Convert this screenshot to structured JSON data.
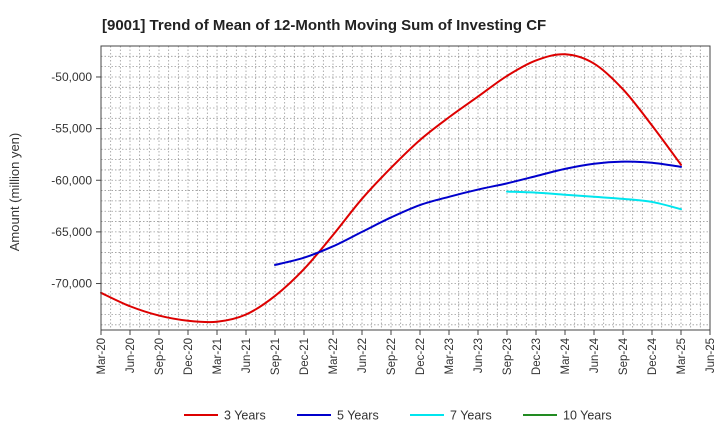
{
  "chart_data": {
    "type": "line",
    "title": "[9001]  Trend of Mean of 12-Month Moving Sum of Investing CF",
    "xlabel": "",
    "ylabel": "Amount (million yen)",
    "ylim": [
      -74500,
      -47000
    ],
    "y_ticks": [
      -50000,
      -55000,
      -60000,
      -65000,
      -70000
    ],
    "y_tick_labels": [
      "-50,000",
      "-55,000",
      "-60,000",
      "-65,000",
      "-70,000"
    ],
    "x_start": "Mar-20",
    "x_end": "Jun-25",
    "x_tick_labels": [
      "Mar-20",
      "Jun-20",
      "Sep-20",
      "Dec-20",
      "Mar-21",
      "Jun-21",
      "Sep-21",
      "Dec-21",
      "Mar-22",
      "Jun-22",
      "Sep-22",
      "Dec-22",
      "Mar-23",
      "Jun-23",
      "Sep-23",
      "Dec-23",
      "Mar-24",
      "Jun-24",
      "Sep-24",
      "Dec-24",
      "Mar-25",
      "Jun-25"
    ],
    "grid": true,
    "legend_position": "bottom",
    "series": [
      {
        "name": "3 Years",
        "color": "#dd0000",
        "points": [
          [
            "Mar-20",
            -70900
          ],
          [
            "Jun-20",
            -72200
          ],
          [
            "Sep-20",
            -73100
          ],
          [
            "Dec-20",
            -73600
          ],
          [
            "Mar-21",
            -73700
          ],
          [
            "Jun-21",
            -73000
          ],
          [
            "Sep-21",
            -71200
          ],
          [
            "Dec-21",
            -68600
          ],
          [
            "Mar-22",
            -65300
          ],
          [
            "Jun-22",
            -61800
          ],
          [
            "Sep-22",
            -58800
          ],
          [
            "Dec-22",
            -56100
          ],
          [
            "Mar-23",
            -53900
          ],
          [
            "Jun-23",
            -51900
          ],
          [
            "Sep-23",
            -49900
          ],
          [
            "Dec-23",
            -48400
          ],
          [
            "Mar-24",
            -47800
          ],
          [
            "Jun-24",
            -48700
          ],
          [
            "Sep-24",
            -51200
          ],
          [
            "Dec-24",
            -54700
          ],
          [
            "Mar-25",
            -58500
          ]
        ]
      },
      {
        "name": "5 Years",
        "color": "#0000cc",
        "points": [
          [
            "Sep-21",
            -68200
          ],
          [
            "Dec-21",
            -67500
          ],
          [
            "Mar-22",
            -66400
          ],
          [
            "Jun-22",
            -65000
          ],
          [
            "Sep-22",
            -63600
          ],
          [
            "Dec-22",
            -62400
          ],
          [
            "Mar-23",
            -61600
          ],
          [
            "Jun-23",
            -60900
          ],
          [
            "Sep-23",
            -60300
          ],
          [
            "Dec-23",
            -59600
          ],
          [
            "Mar-24",
            -58900
          ],
          [
            "Jun-24",
            -58400
          ],
          [
            "Sep-24",
            -58200
          ],
          [
            "Dec-24",
            -58300
          ],
          [
            "Mar-25",
            -58700
          ]
        ]
      },
      {
        "name": "7 Years",
        "color": "#00e5ee",
        "points": [
          [
            "Sep-23",
            -61100
          ],
          [
            "Dec-23",
            -61200
          ],
          [
            "Mar-24",
            -61400
          ],
          [
            "Jun-24",
            -61600
          ],
          [
            "Sep-24",
            -61800
          ],
          [
            "Dec-24",
            -62100
          ],
          [
            "Mar-25",
            -62800
          ]
        ]
      },
      {
        "name": "10 Years",
        "color": "#228b22",
        "points": []
      }
    ]
  }
}
